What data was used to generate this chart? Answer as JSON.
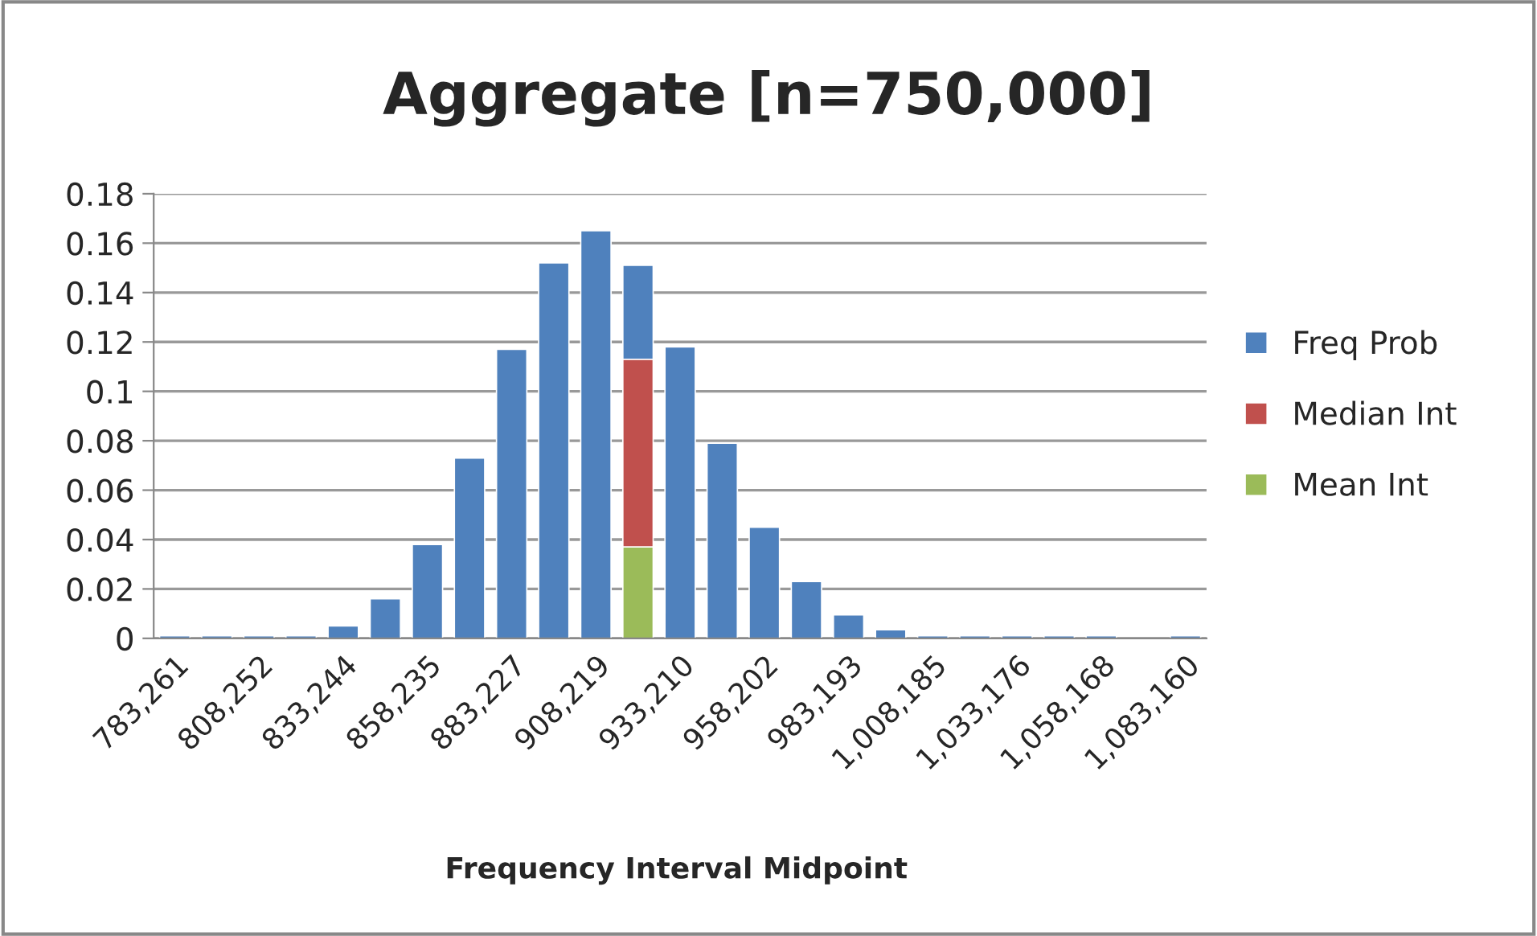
{
  "chart_data": {
    "type": "bar",
    "title": "Aggregate [n=750,000]",
    "xlabel": "Frequency Interval Midpoint",
    "categories": [
      "783,261",
      null,
      "808,252",
      null,
      "833,244",
      null,
      "858,235",
      null,
      "883,227",
      null,
      "908,219",
      null,
      "933,210",
      null,
      "958,202",
      null,
      "983,193",
      null,
      "1,008,185",
      null,
      "1,033,176",
      null,
      "1,058,168",
      null,
      "1,083,160"
    ],
    "stacked": true,
    "series": [
      {
        "name": "Mean Int",
        "color": "#9bbb59",
        "values": [
          null,
          null,
          null,
          null,
          null,
          null,
          null,
          null,
          null,
          null,
          null,
          0.037,
          null,
          null,
          null,
          null,
          null,
          null,
          null,
          null,
          null,
          null,
          null,
          null,
          null
        ]
      },
      {
        "name": "Median Int",
        "color": "#c0504d",
        "values": [
          null,
          null,
          null,
          null,
          null,
          null,
          null,
          null,
          null,
          null,
          null,
          0.076,
          null,
          null,
          null,
          null,
          null,
          null,
          null,
          null,
          null,
          null,
          null,
          null,
          null
        ]
      },
      {
        "name": "Freq Prob",
        "color": "#4f81bd",
        "values": [
          0.001,
          0.001,
          0.001,
          0.001,
          0.005,
          0.016,
          0.038,
          0.073,
          0.117,
          0.152,
          0.165,
          0.038,
          0.118,
          0.079,
          0.045,
          0.023,
          0.0095,
          0.0035,
          0.001,
          0.001,
          0.001,
          0.001,
          0.001,
          null,
          0.001
        ]
      }
    ],
    "ylim": [
      0,
      0.18
    ],
    "yticks": [
      0,
      0.02,
      0.04,
      0.06,
      0.08,
      0.1,
      0.12,
      0.14,
      0.16,
      0.18
    ],
    "grid": "y",
    "legend": "right"
  }
}
